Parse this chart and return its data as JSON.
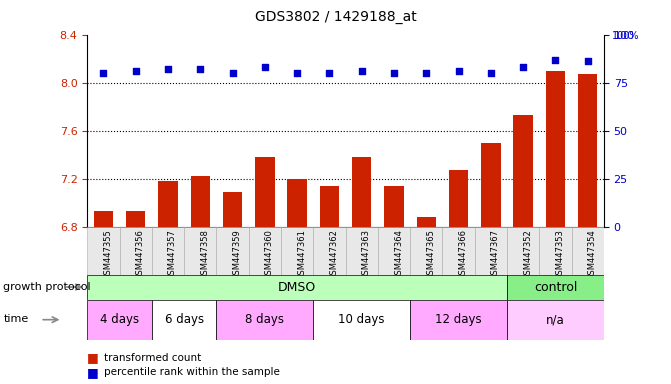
{
  "title": "GDS3802 / 1429188_at",
  "samples": [
    "GSM447355",
    "GSM447356",
    "GSM447357",
    "GSM447358",
    "GSM447359",
    "GSM447360",
    "GSM447361",
    "GSM447362",
    "GSM447363",
    "GSM447364",
    "GSM447365",
    "GSM447366",
    "GSM447367",
    "GSM447352",
    "GSM447353",
    "GSM447354"
  ],
  "bar_values": [
    6.93,
    6.93,
    7.18,
    7.22,
    7.09,
    7.38,
    7.2,
    7.14,
    7.38,
    7.14,
    6.88,
    7.27,
    7.5,
    7.73,
    8.1,
    8.07
  ],
  "dot_values": [
    80,
    81,
    82,
    82,
    80,
    83,
    80,
    80,
    81,
    80,
    80,
    81,
    80,
    83,
    87,
    86
  ],
  "ylim_left": [
    6.8,
    8.4
  ],
  "ylim_right": [
    0,
    100
  ],
  "yticks_left": [
    6.8,
    7.2,
    7.6,
    8.0,
    8.4
  ],
  "yticks_right": [
    0,
    25,
    50,
    75,
    100
  ],
  "bar_color": "#cc2200",
  "dot_color": "#0000cc",
  "hline_values": [
    8.0,
    7.6,
    7.2
  ],
  "growth_protocol_label": "growth protocol",
  "time_label": "time",
  "dmso_label": "DMSO",
  "control_label": "control",
  "time_groups": [
    {
      "label": "4 days",
      "start": 0,
      "end": 2
    },
    {
      "label": "6 days",
      "start": 2,
      "end": 4
    },
    {
      "label": "8 days",
      "start": 4,
      "end": 7
    },
    {
      "label": "10 days",
      "start": 7,
      "end": 10
    },
    {
      "label": "12 days",
      "start": 10,
      "end": 13
    },
    {
      "label": "n/a",
      "start": 13,
      "end": 16
    }
  ],
  "dmso_range": [
    0,
    13
  ],
  "control_range": [
    13,
    16
  ],
  "legend_bar_label": "transformed count",
  "legend_dot_label": "percentile rank within the sample",
  "bg_color": "#ffffff",
  "axis_label_color_left": "#cc2200",
  "axis_label_color_right": "#0000cc",
  "time_colors": [
    "#ffaaff",
    "#ffffff",
    "#ffaaff",
    "#ffffff",
    "#ffaaff",
    "#ffccff"
  ],
  "gp_dmso_color": "#bbffbb",
  "gp_control_color": "#88ee88"
}
